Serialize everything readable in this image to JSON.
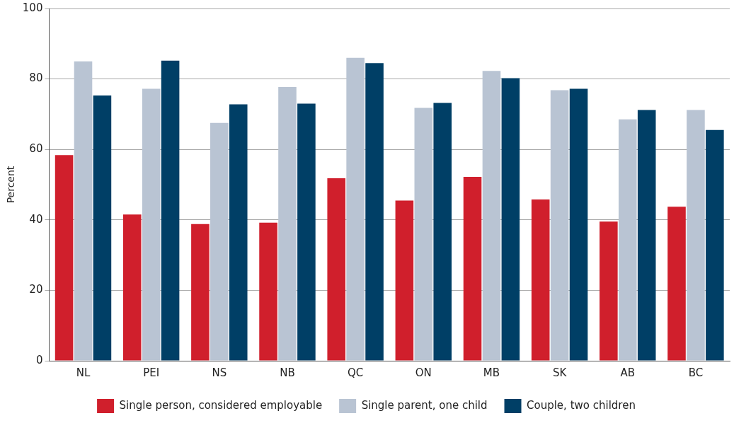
{
  "chart_data": {
    "type": "bar",
    "ylabel": "Percent",
    "categories": [
      "NL",
      "PEI",
      "NS",
      "NB",
      "QC",
      "ON",
      "MB",
      "SK",
      "AB",
      "BC"
    ],
    "series": [
      {
        "name": "Single person, considered employable",
        "color": "#d01f2c",
        "values": [
          58.4,
          41.5,
          38.8,
          39.2,
          51.8,
          45.5,
          52.2,
          45.8,
          39.5,
          43.7
        ]
      },
      {
        "name": "Single parent, one child",
        "color": "#b9c4d3",
        "values": [
          85,
          77.2,
          67.5,
          77.7,
          86,
          71.8,
          82.3,
          76.8,
          68.5,
          71.2
        ]
      },
      {
        "name": "Couple, two children",
        "color": "#003f66",
        "values": [
          75.3,
          85.2,
          72.8,
          73,
          84.5,
          73.2,
          80.2,
          77.2,
          71.2,
          65.5
        ]
      }
    ],
    "ylim": [
      0,
      100
    ],
    "yticks": [
      0,
      20,
      40,
      60,
      80,
      100
    ],
    "grid": "y",
    "legend": "bottom"
  }
}
